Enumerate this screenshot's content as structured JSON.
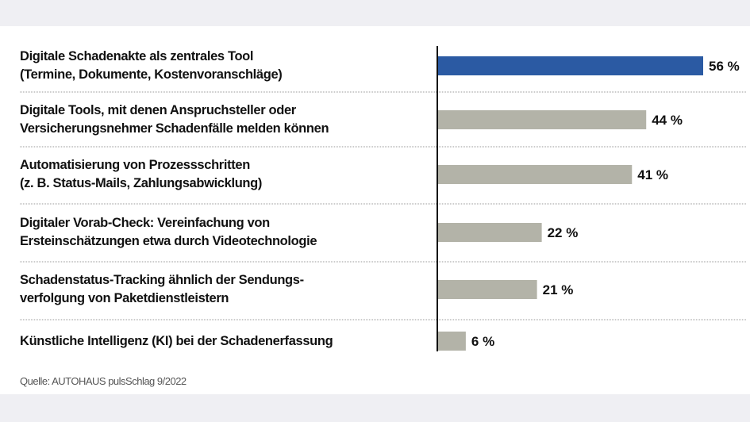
{
  "chart_data": {
    "type": "bar",
    "orientation": "horizontal",
    "categories": [
      [
        "Digitale Schadenakte als zentrales Tool",
        "(Termine, Dokumente, Kostenvoranschläge)"
      ],
      [
        "Digitale Tools, mit denen Anspruchsteller oder",
        "Versicherungsnehmer Schadenfälle melden können"
      ],
      [
        "Automatisierung von Prozessschritten",
        "(z. B. Status-Mails, Zahlungsabwicklung)"
      ],
      [
        "Digitaler Vorab-Check: Vereinfachung von",
        "Ersteinschätzungen etwa durch Videotechnologie"
      ],
      [
        "Schadenstatus-Tracking ähnlich der Sendungs-",
        "verfolgung von Paketdienstleistern"
      ],
      [
        "Künstliche Intelligenz (KI) bei der Schadenerfassung"
      ]
    ],
    "values": [
      56,
      44,
      41,
      22,
      21,
      6
    ],
    "value_labels": [
      "56 %",
      "44 %",
      "41 %",
      "22 %",
      "21 %",
      "6 %"
    ],
    "bar_colors": [
      "#2b5aa3",
      "#b3b3a8",
      "#b3b3a8",
      "#b3b3a8",
      "#b3b3a8",
      "#b3b3a8"
    ],
    "xlim": [
      0,
      56
    ],
    "grid": false,
    "source": "Quelle: AUTOHAUS pulsSchlag 9/2022"
  }
}
